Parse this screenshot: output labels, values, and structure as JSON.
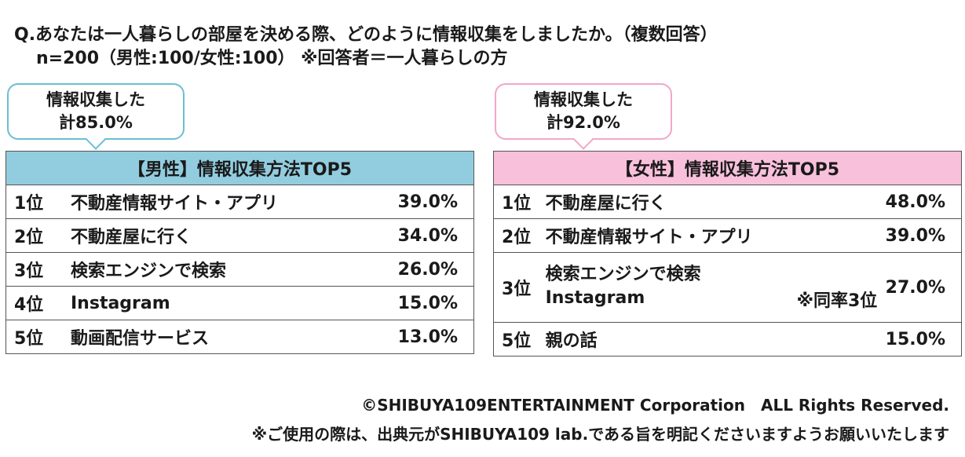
{
  "question": {
    "line1": "Q.あなたは一人暮らしの部屋を決める際、どのように情報収集をしましたか。（複数回答）",
    "line2": "n=200（男性:100/女性:100） ※回答者＝一人暮らしの方"
  },
  "male": {
    "bubble": {
      "line1": "情報収集した",
      "line2": "計85.0%"
    },
    "table_title": "【男性】情報収集方法TOP5",
    "rows": [
      {
        "rank": "1位",
        "name": "不動産情報サイト・アプリ",
        "pct": "39.0%"
      },
      {
        "rank": "2位",
        "name": "不動産屋に行く",
        "pct": "34.0%"
      },
      {
        "rank": "3位",
        "name": "検索エンジンで検索",
        "pct": "26.0%"
      },
      {
        "rank": "4位",
        "name": "Instagram",
        "pct": "15.0%"
      },
      {
        "rank": "5位",
        "name": "動画配信サービス",
        "pct": "13.0%"
      }
    ],
    "colors": {
      "header": "#92cddf",
      "bubble_border": "#6bbfd0"
    }
  },
  "female": {
    "bubble": {
      "line1": "情報収集した",
      "line2": "計92.0%"
    },
    "table_title": "【女性】情報収集方法TOP5",
    "rows": [
      {
        "rank": "1位",
        "name": "不動産屋に行く",
        "pct": "48.0%"
      },
      {
        "rank": "2位",
        "name": "不動産情報サイト・アプリ",
        "pct": "39.0%"
      },
      {
        "rank": "3位",
        "name": "検索エンジンで検索",
        "name2": "Instagram",
        "note": "※同率3位",
        "pct": "27.0%"
      },
      {
        "rank": "5位",
        "name": "親の話",
        "pct": "15.0%"
      }
    ],
    "colors": {
      "header": "#f9c0dc",
      "bubble_border": "#f3a6c8"
    }
  },
  "footer": {
    "copyright": "©SHIBUYA109ENTERTAINMENT Corporation　ALL Rights Reserved.",
    "notice": "※ご使用の際は、出典元がSHIBUYA109 lab.である旨を明記くださいますようお願いいたします"
  }
}
